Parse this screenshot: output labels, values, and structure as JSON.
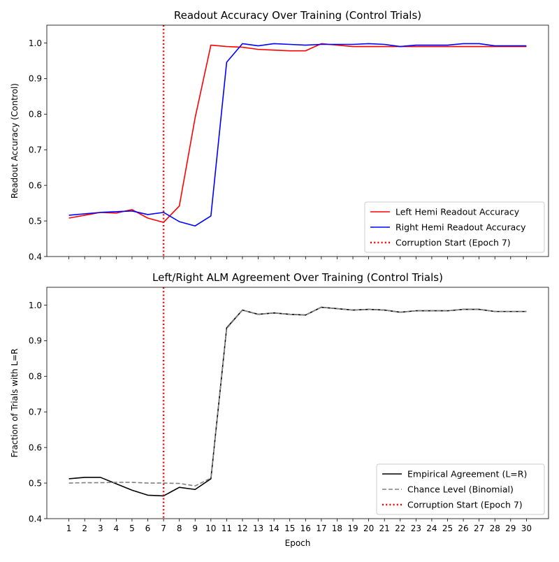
{
  "chart_data": [
    {
      "type": "line",
      "title": "Readout Accuracy Over Training (Control Trials)",
      "xlabel": "",
      "ylabel": "Readout Accuracy (Control)",
      "xlim": [
        -0.4,
        31.4
      ],
      "ylim": [
        0.4,
        1.05
      ],
      "yticks": [
        "0.4",
        "0.5",
        "0.6",
        "0.7",
        "0.8",
        "0.9",
        "1.0"
      ],
      "x": [
        1,
        2,
        3,
        4,
        5,
        6,
        7,
        8,
        9,
        10,
        11,
        12,
        13,
        14,
        15,
        16,
        17,
        18,
        19,
        20,
        21,
        22,
        23,
        24,
        25,
        26,
        27,
        28,
        29,
        30
      ],
      "series": [
        {
          "name": "Left Hemi Readout Accuracy",
          "color": "#ff0000",
          "style": "solid",
          "values": [
            0.508,
            0.516,
            0.524,
            0.522,
            0.532,
            0.508,
            0.496,
            0.542,
            0.79,
            0.994,
            0.99,
            0.988,
            0.982,
            0.98,
            0.978,
            0.978,
            0.998,
            0.994,
            0.99,
            0.99,
            0.99,
            0.99,
            0.99,
            0.99,
            0.99,
            0.99,
            0.99,
            0.99,
            0.99,
            0.99
          ]
        },
        {
          "name": "Right Hemi Readout Accuracy",
          "color": "#0000ff",
          "style": "solid",
          "values": [
            0.516,
            0.52,
            0.524,
            0.526,
            0.528,
            0.518,
            0.524,
            0.498,
            0.486,
            0.514,
            0.946,
            0.998,
            0.992,
            0.998,
            0.996,
            0.994,
            0.996,
            0.996,
            0.996,
            0.998,
            0.996,
            0.99,
            0.994,
            0.994,
            0.994,
            0.998,
            0.998,
            0.992,
            0.992,
            0.992
          ]
        }
      ],
      "vline": {
        "x": 7,
        "name": "Corruption Start (Epoch 7)",
        "color": "#ff0000"
      },
      "grid": false,
      "legend": "lower-right"
    },
    {
      "type": "line",
      "title": "Left/Right ALM Agreement Over Training (Control Trials)",
      "xlabel": "Epoch",
      "ylabel": "Fraction of Trials with L=R",
      "xlim": [
        -0.4,
        31.4
      ],
      "ylim": [
        0.4,
        1.05
      ],
      "yticks": [
        "0.4",
        "0.5",
        "0.6",
        "0.7",
        "0.8",
        "0.9",
        "1.0"
      ],
      "x": [
        1,
        2,
        3,
        4,
        5,
        6,
        7,
        8,
        9,
        10,
        11,
        12,
        13,
        14,
        15,
        16,
        17,
        18,
        19,
        20,
        21,
        22,
        23,
        24,
        25,
        26,
        27,
        28,
        29,
        30
      ],
      "series": [
        {
          "name": "Empirical Agreement (L=R)",
          "color": "#000000",
          "style": "solid",
          "values": [
            0.512,
            0.516,
            0.516,
            0.498,
            0.48,
            0.466,
            0.464,
            0.488,
            0.482,
            0.512,
            0.936,
            0.986,
            0.974,
            0.978,
            0.974,
            0.972,
            0.994,
            0.99,
            0.986,
            0.988,
            0.986,
            0.98,
            0.984,
            0.984,
            0.984,
            0.988,
            0.988,
            0.982,
            0.982,
            0.982
          ]
        },
        {
          "name": "Chance Level (Binomial)",
          "color": "#808080",
          "style": "dashed",
          "values": [
            0.5,
            0.501,
            0.501,
            0.502,
            0.502,
            0.5,
            0.5,
            0.499,
            0.492,
            0.514,
            0.934,
            0.986,
            0.974,
            0.978,
            0.974,
            0.972,
            0.994,
            0.99,
            0.986,
            0.988,
            0.986,
            0.98,
            0.984,
            0.984,
            0.984,
            0.988,
            0.988,
            0.982,
            0.982,
            0.982
          ]
        }
      ],
      "vline": {
        "x": 7,
        "name": "Corruption Start (Epoch 7)",
        "color": "#ff0000"
      },
      "grid": false,
      "legend": "lower-right"
    }
  ]
}
